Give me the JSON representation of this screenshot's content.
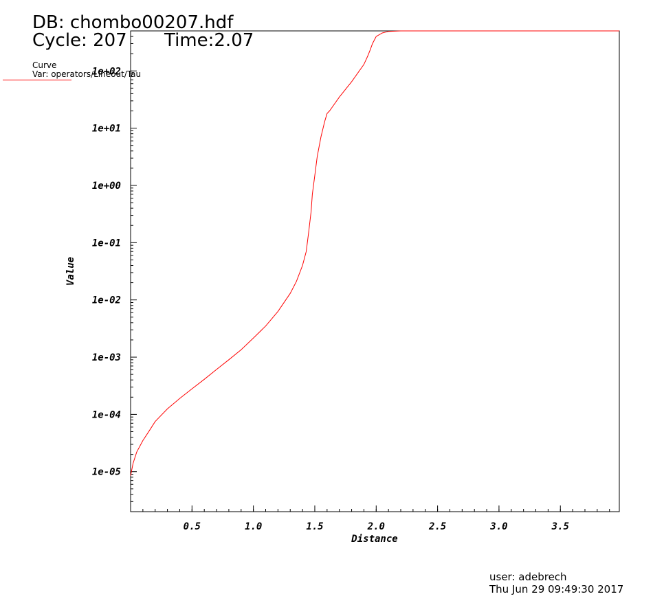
{
  "header": {
    "db_label": "DB: chombo00207.hdf",
    "cycle_label": "Cycle: 207",
    "time_label": "Time:2.07"
  },
  "legend": {
    "title": "Curve",
    "var_label": "Var: operators/Lineout/Tau",
    "color": "#ff0000"
  },
  "footer": {
    "user": "user: adebrech",
    "date": "Thu Jun 29 09:49:30 2017"
  },
  "chart_data": {
    "type": "line",
    "title": "",
    "xlabel": "Distance",
    "ylabel": "Value",
    "xlim": [
      0.0,
      3.98
    ],
    "ylim": [
      2e-06,
      500
    ],
    "yscale": "log",
    "grid": false,
    "x_ticks": [
      0.5,
      1.0,
      1.5,
      2.0,
      2.5,
      3.0,
      3.5
    ],
    "x_tick_labels": [
      "0.5",
      "1.0",
      "1.5",
      "2.0",
      "2.5",
      "3.0",
      "3.5"
    ],
    "y_ticks": [
      1e-05,
      0.0001,
      0.001,
      0.01,
      0.1,
      1,
      10,
      100
    ],
    "y_tick_labels": [
      "1e-05",
      "1e-04",
      "1e-03",
      "1e-02",
      "1e-01",
      "1e+00",
      "1e+01",
      "1e+02"
    ],
    "series": [
      {
        "color": "#ff0000",
        "x": [
          0.0,
          0.02,
          0.05,
          0.1,
          0.15,
          0.2,
          0.3,
          0.4,
          0.5,
          0.6,
          0.7,
          0.8,
          0.9,
          1.0,
          1.1,
          1.2,
          1.3,
          1.35,
          1.4,
          1.43,
          1.45,
          1.47,
          1.48,
          1.5,
          1.52,
          1.55,
          1.58,
          1.6,
          1.62,
          1.64,
          1.7,
          1.8,
          1.9,
          1.93,
          1.95,
          1.97,
          2.0,
          2.05,
          2.1,
          2.2,
          2.3,
          2.4,
          2.6,
          3.0,
          3.5,
          3.98
        ],
        "y": [
          8.5e-06,
          1.4e-05,
          2.2e-05,
          3.5e-05,
          5.1e-05,
          7.5e-05,
          0.000125,
          0.00019,
          0.00028,
          0.00041,
          0.00061,
          0.0009,
          0.00135,
          0.00215,
          0.0035,
          0.0063,
          0.013,
          0.021,
          0.04,
          0.07,
          0.15,
          0.35,
          0.7,
          1.5,
          3.2,
          7.0,
          13,
          18,
          20,
          23,
          35,
          65,
          130,
          180,
          230,
          300,
          400,
          460,
          490,
          500,
          500,
          500,
          500,
          500,
          500,
          500
        ]
      }
    ]
  }
}
